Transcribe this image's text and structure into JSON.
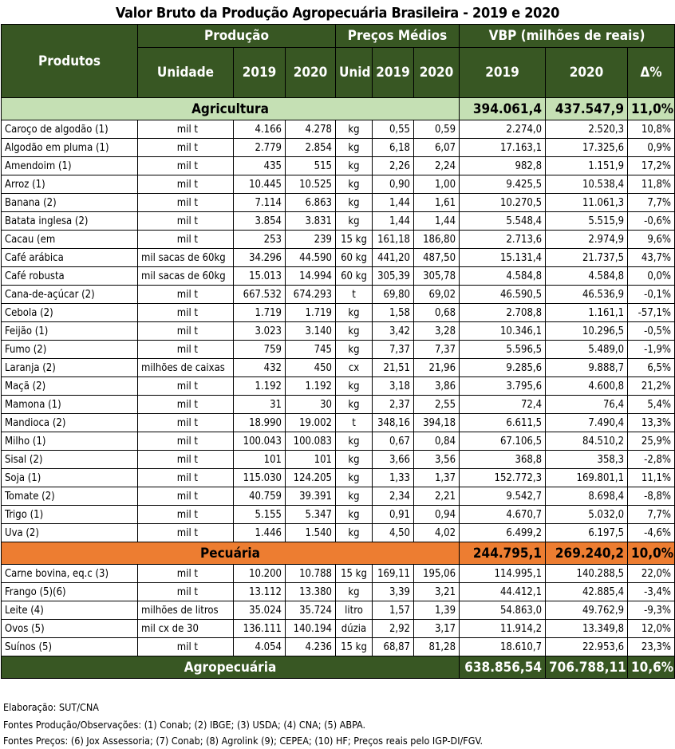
{
  "title": "Valor Bruto da Produção Agropecuária Brasileira - 2019 e 2020",
  "header": {
    "produtos": "Produtos",
    "producao": "Produção",
    "precos": "Preços Médios",
    "vbp": "VBP (milhões de reais)",
    "unidade": "Unidade",
    "y2019": "2019",
    "y2020": "2020",
    "unid": "Unid",
    "delta": "Δ%"
  },
  "agricultura": {
    "label": "Agricultura",
    "vbp2019": "394.061,4",
    "vbp2020": "437.547,9",
    "delta": "11,0%",
    "rows": [
      [
        "Caroço de algodão (1)",
        "mil t",
        "4.166",
        "4.278",
        "kg",
        "0,55",
        "0,59",
        "2.274,0",
        "2.520,3",
        "10,8%"
      ],
      [
        "Algodão em pluma (1)",
        "mil t",
        "2.779",
        "2.854",
        "kg",
        "6,18",
        "6,07",
        "17.163,1",
        "17.325,6",
        "0,9%"
      ],
      [
        "Amendoim (1)",
        "mil t",
        "435",
        "515",
        "kg",
        "2,26",
        "2,24",
        "982,8",
        "1.151,9",
        "17,2%"
      ],
      [
        "Arroz (1)",
        "mil t",
        "10.445",
        "10.525",
        "kg",
        "0,90",
        "1,00",
        "9.425,5",
        "10.538,4",
        "11,8%"
      ],
      [
        "Banana (2)",
        "mil t",
        "7.114",
        "6.863",
        "kg",
        "1,44",
        "1,61",
        "10.270,5",
        "11.061,3",
        "7,7%"
      ],
      [
        "Batata inglesa (2)",
        "mil t",
        "3.854",
        "3.831",
        "kg",
        "1,44",
        "1,44",
        "5.548,4",
        "5.515,9",
        "-0,6%"
      ],
      [
        "Cacau (em",
        "mil t",
        "253",
        "239",
        "15 kg",
        "161,18",
        "186,80",
        "2.713,6",
        "2.974,9",
        "9,6%"
      ],
      [
        "Café arábica",
        "mil sacas de 60kg",
        "34.296",
        "44.590",
        "60 kg",
        "441,20",
        "487,50",
        "15.131,4",
        "21.737,5",
        "43,7%"
      ],
      [
        "Café robusta",
        "mil sacas de 60kg",
        "15.013",
        "14.994",
        "60 kg",
        "305,39",
        "305,78",
        "4.584,8",
        "4.584,8",
        "0,0%"
      ],
      [
        "Cana-de-açúcar (2)",
        "mil t",
        "667.532",
        "674.293",
        "t",
        "69,80",
        "69,02",
        "46.590,5",
        "46.536,9",
        "-0,1%"
      ],
      [
        "Cebola (2)",
        "mil t",
        "1.719",
        "1.719",
        "kg",
        "1,58",
        "0,68",
        "2.708,8",
        "1.161,1",
        "-57,1%"
      ],
      [
        "Feijão (1)",
        "mil t",
        "3.023",
        "3.140",
        "kg",
        "3,42",
        "3,28",
        "10.346,1",
        "10.296,5",
        "-0,5%"
      ],
      [
        "Fumo (2)",
        "mil t",
        "759",
        "745",
        "kg",
        "7,37",
        "7,37",
        "5.596,5",
        "5.489,0",
        "-1,9%"
      ],
      [
        "Laranja (2)",
        "milhões de caixas",
        "432",
        "450",
        "cx",
        "21,51",
        "21,96",
        "9.285,6",
        "9.888,7",
        "6,5%"
      ],
      [
        "Maçã (2)",
        "mil t",
        "1.192",
        "1.192",
        "kg",
        "3,18",
        "3,86",
        "3.795,6",
        "4.600,8",
        "21,2%"
      ],
      [
        "Mamona (1)",
        "mil t",
        "31",
        "30",
        "kg",
        "2,37",
        "2,55",
        "72,4",
        "76,4",
        "5,4%"
      ],
      [
        "Mandioca (2)",
        "mil t",
        "18.990",
        "19.002",
        "t",
        "348,16",
        "394,18",
        "6.611,5",
        "7.490,4",
        "13,3%"
      ],
      [
        "Milho (1)",
        "mil t",
        "100.043",
        "100.083",
        "kg",
        "0,67",
        "0,84",
        "67.106,5",
        "84.510,2",
        "25,9%"
      ],
      [
        "Sisal (2)",
        "mil t",
        "101",
        "101",
        "kg",
        "3,66",
        "3,56",
        "368,8",
        "358,3",
        "-2,8%"
      ],
      [
        "Soja (1)",
        "mil t",
        "115.030",
        "124.205",
        "kg",
        "1,33",
        "1,37",
        "152.772,3",
        "169.801,1",
        "11,1%"
      ],
      [
        "Tomate (2)",
        "mil t",
        "40.759",
        "39.391",
        "kg",
        "2,34",
        "2,21",
        "9.542,7",
        "8.698,4",
        "-8,8%"
      ],
      [
        "Trigo (1)",
        "mil t",
        "5.155",
        "5.347",
        "kg",
        "0,91",
        "0,94",
        "4.670,7",
        "5.032,0",
        "7,7%"
      ],
      [
        "Uva (2)",
        "mil t",
        "1.446",
        "1.540",
        "kg",
        "4,50",
        "4,02",
        "6.499,2",
        "6.197,5",
        "-4,6%"
      ]
    ]
  },
  "pecuaria": {
    "label": "Pecuária",
    "vbp2019": "244.795,1",
    "vbp2020": "269.240,2",
    "delta": "10,0%",
    "rows": [
      [
        "Carne bovina, eq.c (3)",
        "mil t",
        "10.200",
        "10.788",
        "15 kg",
        "169,11",
        "195,06",
        "114.995,1",
        "140.288,5",
        "22,0%"
      ],
      [
        "Frango (5)(6)",
        "mil t",
        "13.112",
        "13.380",
        "kg",
        "3,39",
        "3,21",
        "44.412,1",
        "42.885,4",
        "-3,4%"
      ],
      [
        "Leite (4)",
        "milhões de litros",
        "35.024",
        "35.724",
        "litro",
        "1,57",
        "1,39",
        "54.863,0",
        "49.762,9",
        "-9,3%"
      ],
      [
        "Ovos (5)",
        "mil cx de 30",
        "136.111",
        "140.194",
        "dúzia",
        "2,92",
        "3,17",
        "11.914,2",
        "13.349,8",
        "12,0%"
      ],
      [
        "Suínos (5)",
        "mil t",
        "4.054",
        "4.236",
        "15 kg",
        "68,87",
        "81,28",
        "18.610,7",
        "22.953,6",
        "23,3%"
      ]
    ]
  },
  "total": {
    "label": "Agropecuária",
    "vbp2019": "638.856,54",
    "vbp2020": "706.788,11",
    "delta": "10,6%"
  },
  "footer": [
    "Elaboração: SUT/CNA",
    "Fontes Produção/Observações: (1) Conab; (2) IBGE; (3) USDA; (4) CNA; (5) ABPA.",
    "Fontes Preços: (6) Jox Assessoria; (7) Conab; (8) Agrolink (9); CEPEA; (10) HF; Preços reais pelo IGP-DI/FGV."
  ],
  "colors": {
    "header_bg": "#385723",
    "agri_bg": "#c5e0b4",
    "pec_bg": "#ed7d31"
  }
}
